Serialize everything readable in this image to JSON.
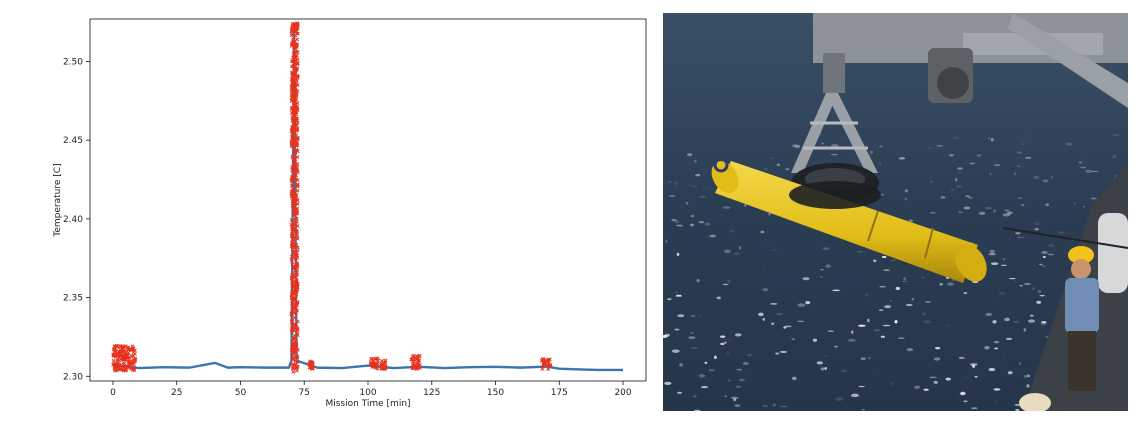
{
  "chart_data": {
    "type": "scatter",
    "title": "",
    "xlabel": "Mission Time [min]",
    "ylabel": "Temperature [C]",
    "xlim": [
      -9,
      209
    ],
    "ylim": [
      2.297,
      2.527
    ],
    "x_ticks": [
      0,
      25,
      50,
      75,
      100,
      125,
      150,
      175,
      200
    ],
    "x_tick_labels": [
      "0",
      "25",
      "50",
      "75",
      "100",
      "125",
      "150",
      "175",
      "200"
    ],
    "y_ticks": [
      2.3,
      2.35,
      2.4,
      2.45,
      2.5
    ],
    "y_tick_labels": [
      "2.30",
      "2.35",
      "2.40",
      "2.45",
      "2.50"
    ],
    "grid": false,
    "series": [
      {
        "style": "line",
        "color": "#3b75af",
        "x": [
          0,
          9,
          10,
          20,
          30,
          40,
          45,
          50,
          60,
          69,
          70,
          71,
          72,
          80,
          90,
          100,
          105,
          110,
          120,
          130,
          140,
          150,
          160,
          170,
          175,
          180,
          190,
          200
        ],
        "y": [
          2.3075,
          2.3055,
          2.3052,
          2.3058,
          2.3055,
          2.3085,
          2.3055,
          2.3058,
          2.3055,
          2.3055,
          2.31,
          2.52,
          2.31,
          2.3055,
          2.3052,
          2.3068,
          2.306,
          2.3052,
          2.306,
          2.3052,
          2.3058,
          2.306,
          2.3055,
          2.3062,
          2.3048,
          2.3045,
          2.304,
          2.304
        ]
      },
      {
        "style": "outlier-markers",
        "color": "#e8321e",
        "clusters": [
          {
            "x_start": 0,
            "x_end": 9,
            "y_min": 2.3035,
            "y_max": 2.3195
          },
          {
            "x_start": 70,
            "x_end": 72.5,
            "y_min": 2.3025,
            "y_max": 2.5245
          },
          {
            "x_start": 77,
            "x_end": 78.5,
            "y_min": 2.3045,
            "y_max": 2.3095
          },
          {
            "x_start": 101,
            "x_end": 104,
            "y_min": 2.3045,
            "y_max": 2.3115
          },
          {
            "x_start": 105,
            "x_end": 107,
            "y_min": 2.3045,
            "y_max": 2.31
          },
          {
            "x_start": 117,
            "x_end": 120.5,
            "y_min": 2.3045,
            "y_max": 2.3135
          },
          {
            "x_start": 168,
            "x_end": 172,
            "y_min": 2.3045,
            "y_max": 2.311
          }
        ]
      }
    ]
  },
  "photo": {
    "colors": {
      "sea": "#2b3d53",
      "auv_body": "#e6c21c",
      "crane": "#8a8f95",
      "helmet": "#f2c21a"
    }
  }
}
